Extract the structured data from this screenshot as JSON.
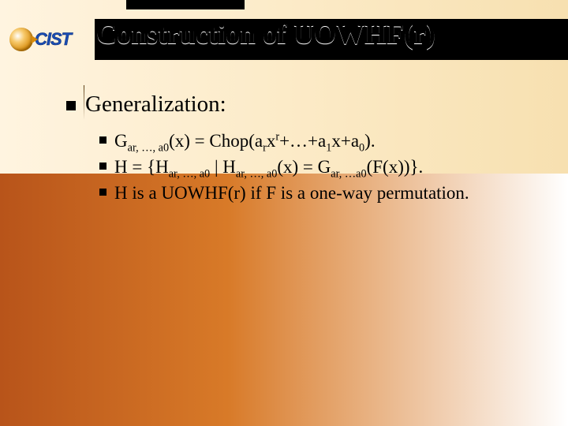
{
  "logo_text": "CIST",
  "title": "Construction of UOWHF(r)",
  "main_bullet": "Generalization:",
  "sub1_pre": "G",
  "sub1_subscript1": "ar, …, a0",
  "sub1_mid1": "(x) = Chop(a",
  "sub1_sub_r": "r",
  "sub1_mid2": "x",
  "sub1_sup_r": "r",
  "sub1_mid3": "+…+a",
  "sub1_sub_1": "1",
  "sub1_mid4": "x+a",
  "sub1_sub_0": "0",
  "sub1_end": ").",
  "sub2_pre": "H = {H",
  "sub2_subscript1": "ar, …, a0",
  "sub2_mid1": " | H",
  "sub2_subscript2": "ar, …, a0",
  "sub2_mid2": "(x) = G",
  "sub2_subscript3": "ar, …a0",
  "sub2_end": "(F(x))}.",
  "sub3": "H is a UOWHF(r) if F is a one-way permutation.",
  "colors": {
    "bullet": "#000000",
    "title_fg": "#000000",
    "band_bg": "#000000",
    "bg_top_start": "#fff4e0",
    "bg_top_end": "#f7e0b0",
    "bg_bottom_start": "#b8541a",
    "bg_bottom_end": "#ffffff",
    "logo_text": "#1a4db3"
  }
}
